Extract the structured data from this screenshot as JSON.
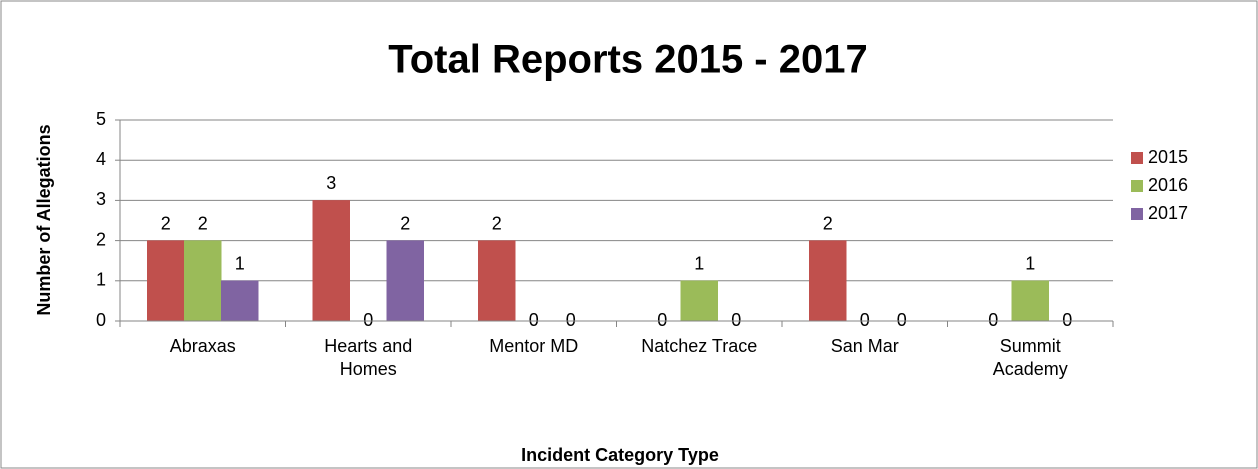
{
  "chart_data": {
    "type": "bar",
    "title": "Total Reports 2015 - 2017",
    "x_label": "Incident Category Type",
    "y_label": "Number of Allegations",
    "categories": [
      "Abraxas",
      "Hearts and Homes",
      "Mentor MD",
      "Natchez Trace",
      "San Mar",
      "Summit Academy"
    ],
    "series": [
      {
        "name": "2015",
        "color": "#c0504d",
        "values": [
          2,
          3,
          2,
          0,
          2,
          0
        ]
      },
      {
        "name": "2016",
        "color": "#9bbb59",
        "values": [
          2,
          0,
          0,
          1,
          0,
          1
        ]
      },
      {
        "name": "2017",
        "color": "#8064a2",
        "values": [
          1,
          2,
          0,
          0,
          0,
          0
        ]
      }
    ],
    "ylim": [
      0,
      5
    ],
    "yticks": [
      0,
      1,
      2,
      3,
      4,
      5
    ],
    "grid": true,
    "legend": "right"
  }
}
